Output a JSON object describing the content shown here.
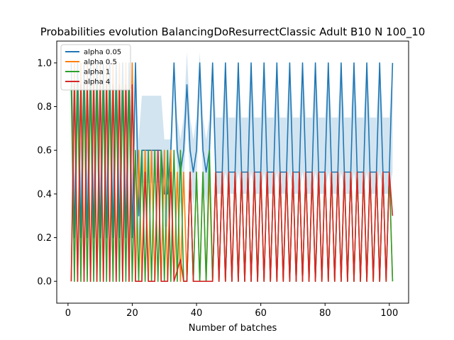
{
  "chart_data": {
    "type": "line",
    "title": "Probabilities evolution BalancingDoResurrectClassic Adult B10 N 100_10",
    "xlabel": "Number of batches",
    "ylabel": "",
    "xlim": [
      -3.5,
      106
    ],
    "ylim": [
      -0.1,
      1.1
    ],
    "xticks": [
      0,
      20,
      40,
      60,
      80,
      100
    ],
    "yticks": [
      0.0,
      0.2,
      0.4,
      0.6,
      0.8,
      1.0
    ],
    "grid": false,
    "legend_position": "top-left",
    "series": [
      {
        "name": "alpha 0.05",
        "color": "#1f77b4",
        "x": [
          1,
          2,
          3,
          4,
          5,
          6,
          7,
          8,
          9,
          10,
          11,
          12,
          13,
          14,
          15,
          16,
          17,
          18,
          19,
          20,
          21,
          22,
          23,
          24,
          25,
          26,
          27,
          28,
          29,
          30,
          31,
          32,
          33,
          34,
          35,
          36,
          37,
          38,
          39,
          40,
          41,
          42,
          43,
          44,
          45,
          46,
          47,
          48,
          49,
          50,
          51,
          52,
          53,
          54,
          55,
          56,
          57,
          58,
          59,
          60,
          61,
          62,
          63,
          64,
          65,
          66,
          67,
          68,
          69,
          70,
          71,
          72,
          73,
          74,
          75,
          76,
          77,
          78,
          79,
          80,
          81,
          82,
          83,
          84,
          85,
          86,
          87,
          88,
          89,
          90,
          91,
          92,
          93,
          94,
          95,
          96,
          97,
          98,
          99,
          100,
          101
        ],
        "y": [
          1,
          0.2,
          1,
          0.2,
          1,
          0.2,
          1,
          0.2,
          1,
          0.2,
          1,
          0.2,
          1,
          0.2,
          1,
          0.2,
          1,
          0.2,
          1,
          0.2,
          1,
          0.3,
          0.6,
          0.6,
          0.6,
          0.6,
          0.6,
          0.6,
          0.6,
          0.4,
          0.4,
          0.6,
          1,
          0.6,
          0.5,
          0.6,
          0.9,
          0.6,
          0.5,
          0.6,
          1,
          0.6,
          0.5,
          0.6,
          1,
          0.5,
          0.5,
          0.5,
          1,
          0.5,
          0.5,
          0.5,
          1,
          0.5,
          0.5,
          0.5,
          1,
          0.5,
          0.5,
          0.5,
          1,
          0.5,
          0.5,
          0.5,
          1,
          0.5,
          0.5,
          0.5,
          1,
          0.5,
          0.5,
          0.5,
          1,
          0.5,
          0.5,
          0.5,
          1,
          0.5,
          0.5,
          0.5,
          1,
          0.5,
          0.5,
          0.5,
          1,
          0.5,
          0.5,
          0.5,
          1,
          0.5,
          0.5,
          0.5,
          1,
          0.5,
          0.5,
          0.5,
          1,
          0.5,
          0.5,
          0.5,
          1
        ],
        "band_lower": [
          0.85,
          0.0,
          0.85,
          0.0,
          0.85,
          0.0,
          0.85,
          0.0,
          0.85,
          0.0,
          0.85,
          0.0,
          0.85,
          0.0,
          0.85,
          0.0,
          0.85,
          0.0,
          0.85,
          0.0,
          0.85,
          0.1,
          0.45,
          0.45,
          0.45,
          0.45,
          0.45,
          0.45,
          0.45,
          0.25,
          0.25,
          0.45,
          0.85,
          0.45,
          0.35,
          0.45,
          0.75,
          0.45,
          0.35,
          0.45,
          0.85,
          0.45,
          0.35,
          0.45,
          0.85,
          0.4,
          0.4,
          0.4,
          0.5,
          0.4,
          0.4,
          0.4,
          0.5,
          0.4,
          0.4,
          0.4,
          0.5,
          0.4,
          0.4,
          0.4,
          0.5,
          0.4,
          0.4,
          0.4,
          0.5,
          0.4,
          0.4,
          0.4,
          0.5,
          0.4,
          0.4,
          0.4,
          0.5,
          0.4,
          0.4,
          0.4,
          0.5,
          0.4,
          0.4,
          0.4,
          0.5,
          0.4,
          0.4,
          0.4,
          0.5,
          0.4,
          0.4,
          0.4,
          0.5,
          0.4,
          0.4,
          0.4,
          0.5,
          0.4,
          0.4,
          0.4,
          0.5,
          0.4,
          0.4,
          0.4,
          0.5
        ],
        "band_upper": [
          1,
          0.6,
          1,
          0.6,
          1,
          0.6,
          1,
          0.6,
          1,
          0.6,
          1,
          0.6,
          1,
          0.6,
          1,
          0.6,
          1,
          0.6,
          1,
          0.6,
          1,
          0.65,
          0.85,
          0.85,
          0.85,
          0.85,
          0.85,
          0.85,
          0.85,
          0.65,
          0.65,
          0.65,
          1,
          0.75,
          0.65,
          0.75,
          1.05,
          0.75,
          0.65,
          0.75,
          1.05,
          0.75,
          0.65,
          0.75,
          1,
          0.75,
          0.75,
          0.75,
          1,
          0.75,
          0.75,
          0.75,
          1,
          0.75,
          0.75,
          0.75,
          1,
          0.75,
          0.75,
          0.75,
          1,
          0.75,
          0.75,
          0.75,
          1,
          0.75,
          0.75,
          0.75,
          1,
          0.75,
          0.75,
          0.75,
          1,
          0.75,
          0.75,
          0.75,
          1,
          0.75,
          0.75,
          0.75,
          1,
          0.75,
          0.75,
          0.75,
          1,
          0.75,
          0.75,
          0.75,
          1,
          0.75,
          0.75,
          0.75,
          1,
          0.75,
          0.75,
          0.75,
          1,
          0.75,
          0.75,
          0.75,
          1
        ]
      },
      {
        "name": "alpha 0.5",
        "color": "#ff7f0e",
        "x": [
          1,
          2,
          3,
          4,
          5,
          6,
          7,
          8,
          9,
          10,
          11,
          12,
          13,
          14,
          15,
          16,
          17,
          18,
          19,
          20,
          21,
          22,
          23,
          24,
          25,
          26,
          27,
          28,
          29,
          30,
          31,
          32,
          33,
          34,
          35,
          36,
          37,
          38,
          39,
          40,
          41,
          42,
          43,
          44,
          45,
          46,
          47,
          48,
          49,
          50,
          51,
          52,
          53,
          54,
          55,
          56,
          57,
          58,
          59,
          60,
          61,
          62,
          63,
          64,
          65,
          66,
          67,
          68,
          69,
          70,
          71,
          72,
          73,
          74,
          75,
          76,
          77,
          78,
          79,
          80,
          81,
          82,
          83,
          84,
          85,
          86,
          87,
          88,
          89,
          90,
          91,
          92,
          93,
          94,
          95,
          96,
          97,
          98,
          99,
          100,
          101
        ],
        "y": [
          0,
          1,
          0,
          1,
          0,
          1,
          0,
          1,
          0,
          1,
          0,
          1,
          0,
          1,
          0,
          1,
          0,
          1,
          0,
          1,
          0,
          0.6,
          0,
          0.6,
          0,
          0.6,
          0,
          0.6,
          0,
          0.6,
          0,
          0.6,
          0,
          0.5,
          0,
          0.5,
          0,
          0.5,
          0,
          0.5,
          0,
          0.5,
          0,
          0.5,
          0,
          0.5,
          0,
          0.5,
          0,
          0.5,
          0,
          0.5,
          0,
          0.5,
          0,
          0.5,
          0,
          0.5,
          0,
          0.5,
          0,
          0.5,
          0,
          0.5,
          0,
          0.5,
          0,
          0.5,
          0,
          0.5,
          0,
          0.5,
          0,
          0.5,
          0,
          0.5,
          0,
          0.5,
          0,
          0.5,
          0,
          0.5,
          0,
          0.5,
          0,
          0.5,
          0,
          0.5,
          0,
          0.5,
          0,
          0.5,
          0,
          0.5,
          0,
          0.5,
          0,
          0.5,
          0,
          0.5,
          0
        ]
      },
      {
        "name": "alpha 1",
        "color": "#2ca02c",
        "x": [
          1,
          2,
          3,
          4,
          5,
          6,
          7,
          8,
          9,
          10,
          11,
          12,
          13,
          14,
          15,
          16,
          17,
          18,
          19,
          20,
          21,
          22,
          23,
          24,
          25,
          26,
          27,
          28,
          29,
          30,
          31,
          32,
          33,
          34,
          35,
          36,
          37,
          38,
          39,
          40,
          41,
          42,
          43,
          44,
          45,
          46,
          47,
          48,
          49,
          50,
          51,
          52,
          53,
          54,
          55,
          56,
          57,
          58,
          59,
          60,
          61,
          62,
          63,
          64,
          65,
          66,
          67,
          68,
          69,
          70,
          71,
          72,
          73,
          74,
          75,
          76,
          77,
          78,
          79,
          80,
          81,
          82,
          83,
          84,
          85,
          86,
          87,
          88,
          89,
          90,
          91,
          92,
          93,
          94,
          95,
          96,
          97,
          98,
          99,
          100,
          101
        ],
        "y": [
          0.9,
          0,
          0.9,
          0,
          0.9,
          0,
          0.9,
          0,
          0.9,
          0,
          0.9,
          0,
          0.9,
          0,
          0.9,
          0,
          0.9,
          0,
          0.9,
          0,
          0.6,
          0,
          0.6,
          0,
          0.6,
          0,
          0.6,
          0,
          0.6,
          0,
          0.6,
          0,
          0.6,
          0,
          0.6,
          0,
          0,
          0.5,
          0,
          0.5,
          0,
          0.5,
          0,
          0.6,
          0,
          0.5,
          0,
          0.5,
          0,
          0.5,
          0,
          0.5,
          0,
          0.5,
          0,
          0.5,
          0,
          0.5,
          0,
          0.5,
          0,
          0.5,
          0,
          0.5,
          0,
          0.5,
          0,
          0.5,
          0,
          0.5,
          0,
          0.5,
          0,
          0.5,
          0,
          0.5,
          0,
          0.5,
          0,
          0.5,
          0,
          0.5,
          0,
          0.5,
          0,
          0.5,
          0,
          0.5,
          0,
          0.5,
          0,
          0.5,
          0,
          0.5,
          0,
          0.5,
          0,
          0.5,
          0,
          0.5,
          0
        ]
      },
      {
        "name": "alpha 4",
        "color": "#d62728",
        "x": [
          1,
          2,
          3,
          4,
          5,
          6,
          7,
          8,
          9,
          10,
          11,
          12,
          13,
          14,
          15,
          16,
          17,
          18,
          19,
          20,
          21,
          22,
          23,
          24,
          25,
          26,
          27,
          28,
          29,
          30,
          31,
          32,
          33,
          34,
          35,
          36,
          37,
          38,
          39,
          40,
          41,
          42,
          43,
          44,
          45,
          46,
          47,
          48,
          49,
          50,
          51,
          52,
          53,
          54,
          55,
          56,
          57,
          58,
          59,
          60,
          61,
          62,
          63,
          64,
          65,
          66,
          67,
          68,
          69,
          70,
          71,
          72,
          73,
          74,
          75,
          76,
          77,
          78,
          79,
          80,
          81,
          82,
          83,
          84,
          85,
          86,
          87,
          88,
          89,
          90,
          91,
          92,
          93,
          94,
          95,
          96,
          97,
          98,
          99,
          100,
          101
        ],
        "y": [
          0,
          0.9,
          0,
          0.9,
          0,
          0.9,
          0,
          0.9,
          0,
          0.9,
          0,
          0.9,
          0,
          0.9,
          0,
          0.9,
          0,
          0.9,
          0,
          0.9,
          0,
          0,
          0,
          0.5,
          0,
          0,
          0,
          0.6,
          0,
          0,
          0,
          0.5,
          0,
          0.05,
          0.1,
          0,
          0,
          0.5,
          0,
          0,
          0,
          0,
          0,
          0,
          0,
          0.5,
          0,
          0.5,
          0,
          0.5,
          0,
          0.5,
          0,
          0.5,
          0,
          0.5,
          0,
          0.5,
          0,
          0.5,
          0,
          0.5,
          0,
          0.5,
          0,
          0.5,
          0,
          0.5,
          0,
          0.5,
          0,
          0.5,
          0,
          0.5,
          0,
          0.5,
          0,
          0.5,
          0,
          0.5,
          0,
          0.5,
          0,
          0.5,
          0,
          0.5,
          0,
          0.5,
          0,
          0.5,
          0,
          0.5,
          0,
          0.5,
          0,
          0.5,
          0,
          0.5,
          0,
          0.5,
          0.3
        ]
      }
    ]
  }
}
